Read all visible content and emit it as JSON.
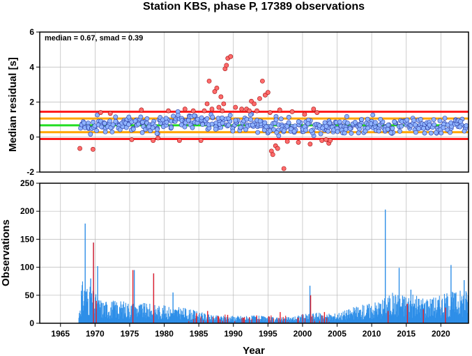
{
  "chart_data": [
    {
      "type": "scatter",
      "title": "Station KBS, phase P, 17389 observations",
      "ylabel": "Median residual [s]",
      "xlim": [
        1962,
        2024
      ],
      "ylim": [
        -2,
        6
      ],
      "yticks": [
        -2,
        0,
        2,
        4,
        6
      ],
      "annotation": "median = 0.67, smad = 0.39",
      "grid": true,
      "reference_lines": [
        {
          "value": 0.67,
          "color": "#22dd22",
          "meaning": "median"
        },
        {
          "value": 1.06,
          "color": "#ffa500",
          "meaning": "median + 1 smad"
        },
        {
          "value": 0.28,
          "color": "#ffa500",
          "meaning": "median - 1 smad"
        },
        {
          "value": 1.45,
          "color": "#ff1a1a",
          "meaning": "median + 2 smad"
        },
        {
          "value": -0.11,
          "color": "#ff1a1a",
          "meaning": "median - 2 smad"
        }
      ],
      "colors": {
        "inlier": "#8fb4ff",
        "outlier": "#ff6b6b"
      },
      "outlier_points": {
        "x": [
          1967.8,
          1969.7,
          1983.0,
          1984.2,
          1985.3,
          1985.8,
          1986.2,
          1986.5,
          1986.9,
          1987.3,
          1987.6,
          1987.9,
          1988.2,
          1988.4,
          1988.6,
          1988.8,
          1989.0,
          1989.2,
          1989.6,
          1990.3,
          1991.2,
          1991.9,
          1992.3,
          1992.6,
          1993.0,
          1993.4,
          1993.8,
          1994.2,
          1994.6,
          1995.0,
          1995.3,
          1995.5,
          1995.7,
          1996.1,
          1996.4,
          1996.7,
          1997.3,
          1997.8,
          1998.5,
          1999.4,
          2000.3,
          2001.1,
          2001.6,
          2002.1,
          2002.8,
          2003.4,
          2003.8,
          2004.0,
          1970.8,
          1972.2,
          1975.3,
          1976.7,
          1978.4,
          1979.1,
          1980.6,
          1982.2
        ],
        "y": [
          -0.65,
          -0.7,
          1.6,
          1.5,
          -0.2,
          1.5,
          1.9,
          3.2,
          1.6,
          2.6,
          2.8,
          1.7,
          2.3,
          1.5,
          1.9,
          3.9,
          4.1,
          4.5,
          4.6,
          1.7,
          1.6,
          1.6,
          1.5,
          2.05,
          1.9,
          1.5,
          2.2,
          3.2,
          2.4,
          2.55,
          1.4,
          -0.8,
          -1.0,
          -0.5,
          -0.65,
          1.55,
          -1.8,
          -0.25,
          1.45,
          -0.3,
          1.3,
          -0.4,
          1.6,
          1.4,
          -0.2,
          -0.15,
          -0.35,
          -0.2,
          1.4,
          1.35,
          -0.15,
          1.55,
          -0.2,
          -0.05,
          1.5,
          -0.2
        ]
      },
      "inlier_points": {
        "x": [
          1968.1,
          1968.5,
          1969.0,
          1969.5,
          1970.0,
          1970.5,
          1971.0,
          1971.5,
          1972.0,
          1972.5,
          1973.0,
          1973.5,
          1974.0,
          1974.5,
          1975.0,
          1975.5,
          1976.0,
          1976.5,
          1977.0,
          1977.5,
          1978.0,
          1978.5,
          1979.0,
          1979.5,
          1980.0,
          1980.5,
          1981.0,
          1981.5,
          1982.0,
          1982.5,
          1983.0,
          1983.5,
          1984.0,
          1984.5,
          1985.0,
          1985.5,
          1986.0,
          1986.5,
          1987.0,
          1987.5,
          1988.0,
          1988.5,
          1989.0,
          1989.5,
          1990.0,
          1990.5,
          1991.0,
          1991.5,
          1992.0,
          1992.5,
          1993.0,
          1993.5,
          1994.0,
          1994.5,
          1995.0,
          1995.5,
          1996.0,
          1996.5,
          1997.0,
          1997.5,
          1998.0,
          1998.5,
          1999.0,
          1999.5,
          2000.0,
          2000.5,
          2001.0,
          2001.5,
          2002.0,
          2002.5,
          2003.0,
          2003.5,
          2004.0,
          2004.5,
          2005.0,
          2005.5,
          2006.0,
          2006.5,
          2007.0,
          2007.5,
          2008.0,
          2008.5,
          2009.0,
          2009.5,
          2010.0,
          2010.5,
          2011.0,
          2011.5,
          2012.0,
          2012.5,
          2013.0,
          2013.5,
          2014.0,
          2014.5,
          2015.0,
          2015.5,
          2016.0,
          2016.5,
          2017.0,
          2017.5,
          2018.0,
          2018.5,
          2019.0,
          2019.5,
          2020.0,
          2020.5,
          2021.0,
          2021.5,
          2022.0,
          2022.5,
          2023.0,
          2023.5
        ],
        "y": [
          0.7,
          0.6,
          0.8,
          0.5,
          0.6,
          0.9,
          0.7,
          0.5,
          0.8,
          0.6,
          0.9,
          0.7,
          0.6,
          0.9,
          0.8,
          0.5,
          0.7,
          1.0,
          0.6,
          0.8,
          0.7,
          0.9,
          0.5,
          0.8,
          0.7,
          1.0,
          0.6,
          0.9,
          1.1,
          0.7,
          0.9,
          1.0,
          0.8,
          1.2,
          0.9,
          0.8,
          1.0,
          0.7,
          1.1,
          0.8,
          0.9,
          1.0,
          0.7,
          0.9,
          0.6,
          0.8,
          0.5,
          0.9,
          0.7,
          1.0,
          0.8,
          0.6,
          0.9,
          0.7,
          0.6,
          0.5,
          0.8,
          0.4,
          0.7,
          0.5,
          0.8,
          0.6,
          0.4,
          0.7,
          0.5,
          0.6,
          0.8,
          0.4,
          0.7,
          0.5,
          0.6,
          0.4,
          0.7,
          0.6,
          0.5,
          0.7,
          0.6,
          0.8,
          0.5,
          0.7,
          0.6,
          0.8,
          0.5,
          0.7,
          0.9,
          0.6,
          0.5,
          0.8,
          0.6,
          0.7,
          0.5,
          0.8,
          0.6,
          0.9,
          0.7,
          0.5,
          0.8,
          0.6,
          0.7,
          0.5,
          0.8,
          0.6,
          0.7,
          0.5,
          0.6,
          0.8,
          0.7,
          0.5,
          0.8,
          0.6,
          0.7,
          0.6
        ]
      }
    },
    {
      "type": "bar",
      "xlabel": "Year",
      "ylabel": "Observations",
      "xlim": [
        1962,
        2024
      ],
      "ylim": [
        0,
        250
      ],
      "yticks": [
        0,
        50,
        100,
        150,
        200,
        250
      ],
      "xticks": [
        1965,
        1970,
        1975,
        1980,
        1985,
        1990,
        1995,
        2000,
        2005,
        2010,
        2015,
        2020
      ],
      "grid": true,
      "colors": {
        "main": "#2e8fe8",
        "outlier": "#e8202a"
      },
      "envelope": {
        "x": [
          1967.5,
          1968.0,
          1969.0,
          1970.0,
          1971.0,
          1973.0,
          1975.0,
          1978.0,
          1981.0,
          1983.0,
          1985.0,
          1987.0,
          1990.0,
          1993.0,
          1996.0,
          1998.0,
          2000.0,
          2002.0,
          2004.0,
          2005.0,
          2007.0,
          2009.0,
          2011.0,
          2013.0,
          2015.0,
          2017.0,
          2019.0,
          2021.0,
          2023.9
        ],
        "y": [
          2,
          55,
          50,
          38,
          30,
          30,
          28,
          25,
          22,
          20,
          15,
          10,
          10,
          10,
          8,
          8,
          12,
          14,
          12,
          14,
          20,
          25,
          30,
          40,
          38,
          35,
          35,
          40,
          45
        ]
      },
      "peaks": {
        "x": [
          1968.5,
          1969.3,
          1969.7,
          1970.3,
          1975.6,
          1978.4,
          1981.2,
          2001.0,
          2011.9,
          2013.9,
          2015.6,
          2021.4,
          2023.3
        ],
        "y": [
          178,
          80,
          144,
          102,
          95,
          89,
          55,
          67,
          203,
          99,
          60,
          104,
          77
        ]
      },
      "red_bars": {
        "x": [
          1969.7,
          1970.1,
          1975.4,
          1978.4,
          1984.6,
          1986.2,
          1987.8,
          1989.1,
          1991.4,
          1993.3,
          1995.1,
          1996.7,
          1999.3,
          2001.1,
          2003.1,
          2012.3,
          2015.1,
          2017.4,
          2020.6
        ],
        "y": [
          144,
          40,
          95,
          89,
          18,
          22,
          12,
          15,
          10,
          14,
          12,
          20,
          10,
          50,
          20,
          22,
          35,
          25,
          28
        ]
      }
    }
  ]
}
